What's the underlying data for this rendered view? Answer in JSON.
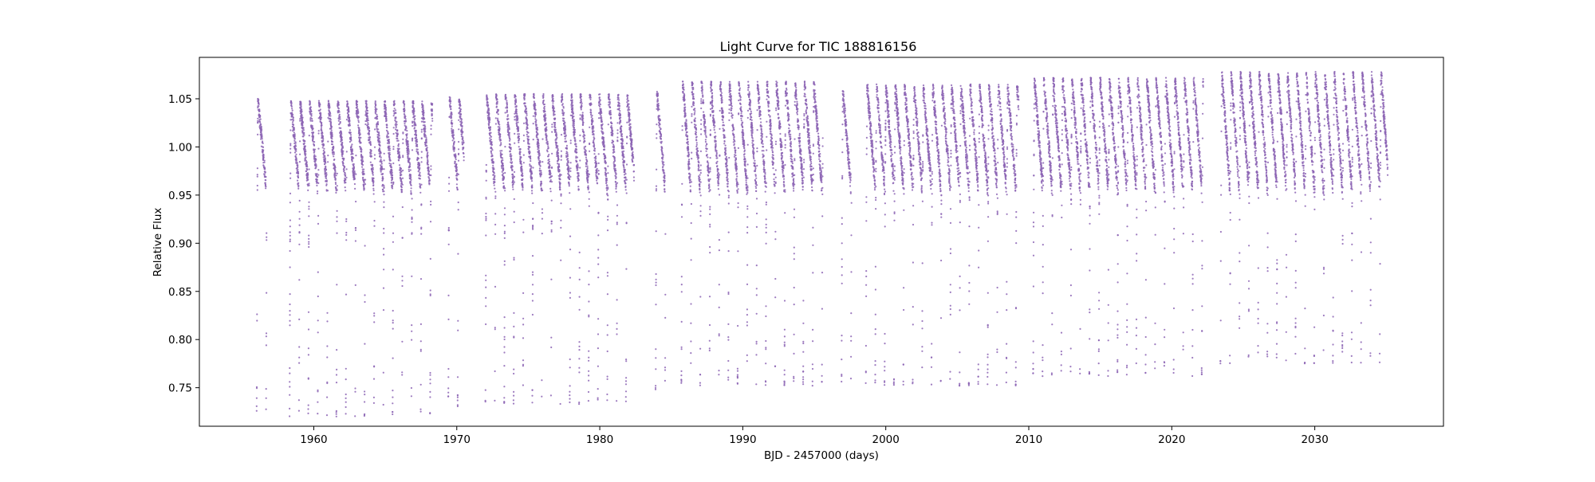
{
  "chart_data": {
    "type": "scatter",
    "title": "Light Curve for TIC 188816156",
    "xlabel": "BJD - 2457000 (days)",
    "ylabel": "Relative Flux",
    "xlim": [
      1952,
      2039
    ],
    "ylim": [
      0.71,
      1.093
    ],
    "xticks": [
      1960,
      1970,
      1980,
      1990,
      2000,
      2010,
      2020,
      2030
    ],
    "xtick_labels": [
      "1960",
      "1970",
      "1980",
      "1990",
      "2000",
      "2010",
      "2020",
      "2030"
    ],
    "yticks": [
      0.75,
      0.8,
      0.85,
      0.9,
      0.95,
      1.0,
      1.05
    ],
    "ytick_labels": [
      "0.75",
      "0.80",
      "0.85",
      "0.90",
      "0.95",
      "1.00",
      "1.05"
    ],
    "grid": false,
    "legend": "none",
    "marker_color": "#8c64b4",
    "series": [
      {
        "segments": [
          {
            "start": 1956.0,
            "end": 1956.7,
            "flux_min": 0.725,
            "flux_max": 1.05
          },
          {
            "start": 1958.3,
            "end": 1968.3,
            "flux_min": 0.72,
            "flux_max": 1.048
          },
          {
            "start": 1969.4,
            "end": 1970.5,
            "flux_min": 0.73,
            "flux_max": 1.052
          },
          {
            "start": 1972.0,
            "end": 1982.4,
            "flux_min": 0.733,
            "flux_max": 1.055
          },
          {
            "start": 1983.9,
            "end": 1984.6,
            "flux_min": 0.748,
            "flux_max": 1.058
          },
          {
            "start": 1985.7,
            "end": 1995.6,
            "flux_min": 0.752,
            "flux_max": 1.068
          },
          {
            "start": 1996.9,
            "end": 1997.6,
            "flux_min": 0.755,
            "flux_max": 1.058
          },
          {
            "start": 1998.6,
            "end": 2009.3,
            "flux_min": 0.752,
            "flux_max": 1.065
          },
          {
            "start": 2010.3,
            "end": 2022.2,
            "flux_min": 0.762,
            "flux_max": 1.072
          },
          {
            "start": 2023.4,
            "end": 2035.1,
            "flux_min": 0.775,
            "flux_max": 1.078
          }
        ],
        "period_days": 0.655,
        "baseline_flux": 1.0,
        "scatter": 0.02
      }
    ]
  }
}
